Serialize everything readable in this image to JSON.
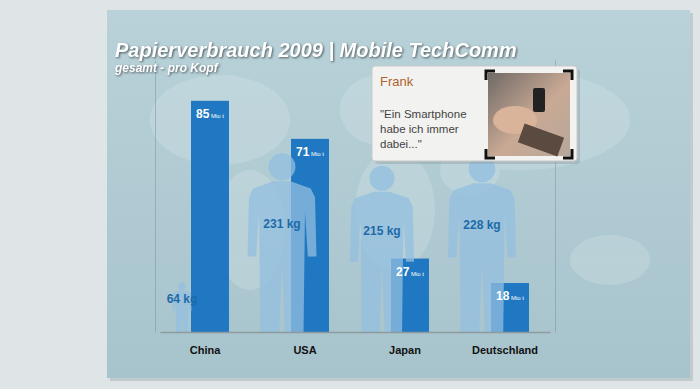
{
  "chart_data": {
    "type": "bar",
    "title": "Papierverbrauch 2009 | Mobile TechComm",
    "subtitle": "gesamt - pro Kopf",
    "categories": [
      "China",
      "USA",
      "Japan",
      "Deutschland"
    ],
    "series": [
      {
        "type": "bar",
        "color": "#1f78c1",
        "values": [
          85,
          71,
          27,
          18
        ],
        "value_labels": [
          "85 Mio t",
          "71 Mio t",
          "27 Mio t",
          "18 Mio t"
        ]
      },
      {
        "type": "pictogram",
        "color": "#93bfdf",
        "axis": "y2",
        "values": [
          64,
          231,
          215,
          228
        ],
        "value_labels": [
          "64 kg",
          "231 kg",
          "215 kg",
          "228 kg"
        ]
      }
    ],
    "ylim": [
      0,
      100
    ],
    "y2lim": [
      0,
      350
    ],
    "data_labels": true,
    "tick_labels": "x",
    "grid": false,
    "annotations": [
      "Frank",
      "\"Ein Smartphone habe ich immer dabei...\""
    ]
  }
}
